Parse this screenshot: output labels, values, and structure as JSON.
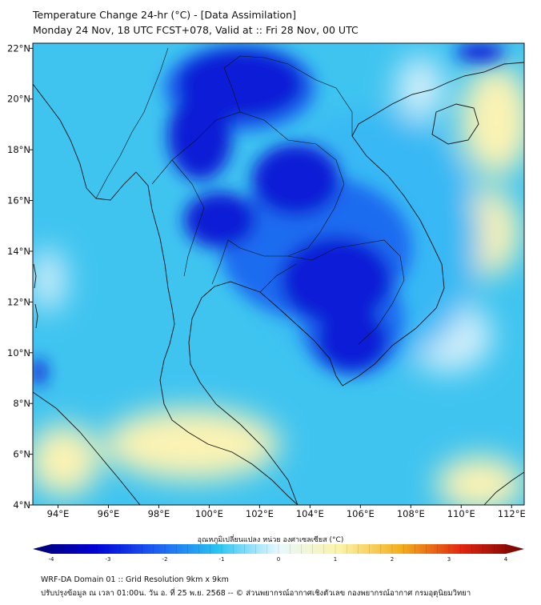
{
  "title": {
    "line1": "Temperature Change 24-hr (°C) - [Data Assimilation]",
    "line2": "Monday 24 Nov, 18 UTC FCST+078, Valid at :: Fri 28 Nov, 00 UTC"
  },
  "map": {
    "lon_range": [
      93,
      112.5
    ],
    "lat_range": [
      4,
      22.2
    ],
    "lon_ticks": [
      {
        "value": 94,
        "label": "94°E"
      },
      {
        "value": 96,
        "label": "96°E"
      },
      {
        "value": 98,
        "label": "98°E"
      },
      {
        "value": 100,
        "label": "100°E"
      },
      {
        "value": 102,
        "label": "102°E"
      },
      {
        "value": 104,
        "label": "104°E"
      },
      {
        "value": 106,
        "label": "106°E"
      },
      {
        "value": 108,
        "label": "108°E"
      },
      {
        "value": 110,
        "label": "110°E"
      },
      {
        "value": 112,
        "label": "112°E"
      }
    ],
    "lat_ticks": [
      {
        "value": 4,
        "label": "4°N"
      },
      {
        "value": 6,
        "label": "6°N"
      },
      {
        "value": 8,
        "label": "8°N"
      },
      {
        "value": 10,
        "label": "10°N"
      },
      {
        "value": 12,
        "label": "12°N"
      },
      {
        "value": 14,
        "label": "14°N"
      },
      {
        "value": 16,
        "label": "16°N"
      },
      {
        "value": 18,
        "label": "18°N"
      },
      {
        "value": 20,
        "label": "20°N"
      },
      {
        "value": 22,
        "label": "22°N"
      }
    ],
    "field_colors": {
      "strong_cooling": "#0a1fd6",
      "moderate_cooling": "#1f6cf0",
      "light_cooling": "#39b8f4",
      "background": "#3fc4f0",
      "neutral": "#cfeefa",
      "warming": "#fbf3b4",
      "coast": "#111111"
    }
  },
  "colorbar": {
    "label": "อุณหภูมิเปลี่ยนแปลง หน่วย องศาเซลเซียส (°C)",
    "min": -4,
    "max": 4,
    "ticks": [
      {
        "value": -4,
        "label": "-4"
      },
      {
        "value": -3,
        "label": "-3"
      },
      {
        "value": -2,
        "label": "-2"
      },
      {
        "value": -1,
        "label": "-1"
      },
      {
        "value": 0,
        "label": "0"
      },
      {
        "value": 1,
        "label": "1"
      },
      {
        "value": 2,
        "label": "2"
      },
      {
        "value": 3,
        "label": "3"
      },
      {
        "value": 4,
        "label": "4"
      }
    ],
    "colors": [
      "#00006e",
      "#0000d8",
      "#1e5ef2",
      "#26c4f2",
      "#e8f8ff",
      "#fbf3a6",
      "#f3ae1c",
      "#e02410",
      "#6e0000"
    ]
  },
  "footer": {
    "line1": "WRF-DA Domain 01 :: Grid Resolution 9km x 9km",
    "line2": "ปรับปรุงข้อมูล ณ เวลา 01:00น. วัน อ. ที่ 25 พ.ย. 2568 -- © ส่วนพยากรณ์อากาศเชิงตัวเลข กองพยากรณ์อากาศ กรมอุตุนิยมวิทยา"
  }
}
